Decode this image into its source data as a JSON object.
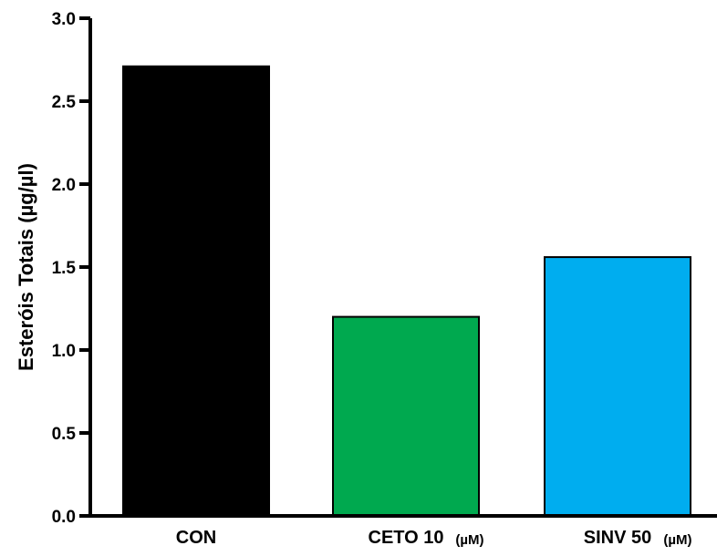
{
  "chart_data": {
    "type": "bar",
    "title": "",
    "xlabel": "",
    "ylabel": "Esteróis Totais (µg/µl)",
    "ylim": [
      0,
      3.0
    ],
    "yticks": [
      "0.0",
      "0.5",
      "1.0",
      "1.5",
      "2.0",
      "2.5",
      "3.0"
    ],
    "categories": [
      "CON",
      "CETO 10",
      "SINV 50"
    ],
    "category_units": [
      "",
      "(µM)",
      "(µM)"
    ],
    "values": [
      2.71,
      1.2,
      1.56
    ],
    "colors": [
      "#000000",
      "#00a94f",
      "#00adef"
    ],
    "grid": false,
    "legend": "none"
  }
}
